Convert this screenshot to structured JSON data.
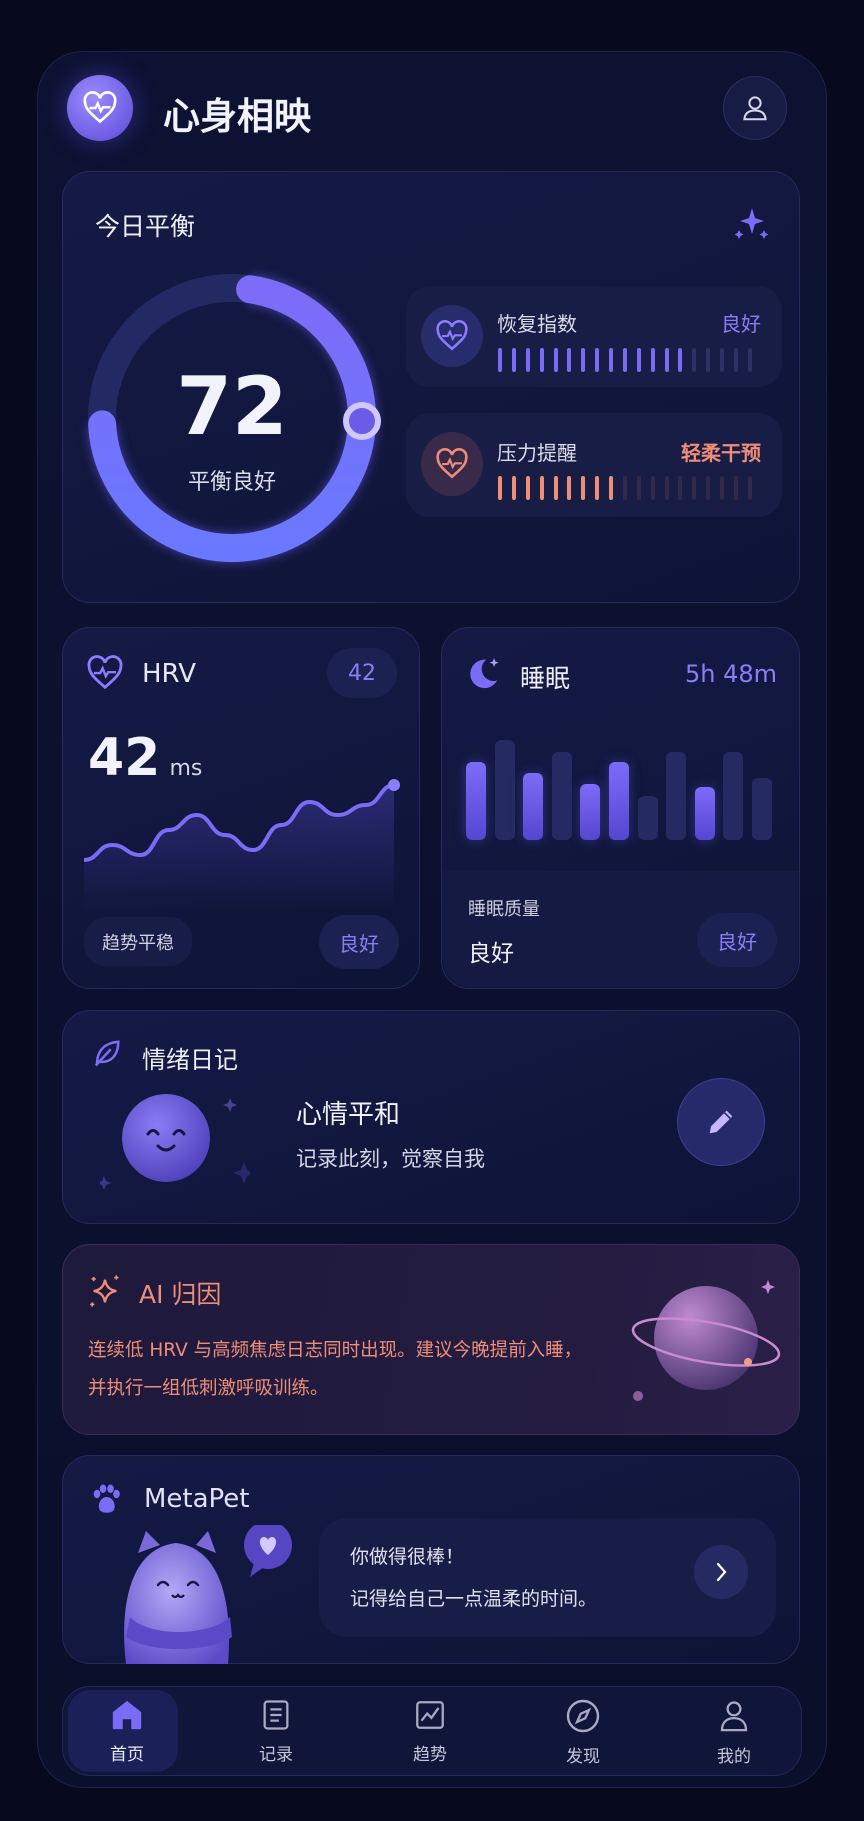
{
  "app": {
    "title": "心身相映",
    "logo_icon": "heart-pulse-icon",
    "profile_icon": "user-icon"
  },
  "balance": {
    "title": "今日平衡",
    "score": 72,
    "score_percent": 72,
    "status": "平衡良好",
    "sparkle_icon": "sparkle-icon",
    "recovery": {
      "label": "恢复指数",
      "value": "良好",
      "level_bars": 19,
      "level_filled": 14,
      "color": "#7b6cf6"
    },
    "stress": {
      "label": "压力提醒",
      "value": "轻柔干预",
      "level_bars": 19,
      "level_filled": 9,
      "color": "#f08d78"
    }
  },
  "hrv": {
    "title": "HRV",
    "badge": "42",
    "value": "42",
    "unit": "ms",
    "trend_label": "趋势平稳",
    "status": "良好",
    "trend": [
      0.2,
      0.35,
      0.25,
      0.5,
      0.65,
      0.45,
      0.3,
      0.55,
      0.78,
      0.65,
      0.75,
      0.95
    ]
  },
  "sleep": {
    "title": "睡眠",
    "duration": "5h 48m",
    "quality_label": "睡眠质量",
    "quality_value": "良好",
    "status": "良好",
    "bars": [
      {
        "level": 0.78,
        "highlight": true
      },
      {
        "level": 1.0,
        "highlight": false
      },
      {
        "level": 0.67,
        "highlight": true
      },
      {
        "level": 0.88,
        "highlight": false
      },
      {
        "level": 0.56,
        "highlight": true
      },
      {
        "level": 0.78,
        "highlight": true
      },
      {
        "level": 0.44,
        "highlight": false
      },
      {
        "level": 0.88,
        "highlight": false
      },
      {
        "level": 0.53,
        "highlight": true
      },
      {
        "level": 0.88,
        "highlight": false
      },
      {
        "level": 0.62,
        "highlight": false
      }
    ]
  },
  "mood": {
    "title": "情绪日记",
    "headline": "心情平和",
    "subtitle": "记录此刻，觉察自我",
    "edit_icon": "pencil-icon"
  },
  "ai": {
    "title": "AI 归因",
    "line1": "连续低 HRV 与高频焦虑日志同时出现。建议今晚提前入睡，",
    "line2": "并执行一组低刺激呼吸训练。"
  },
  "pet": {
    "title": "MetaPet",
    "message1": "你做得很棒！",
    "message2": "记得给自己一点温柔的时间。"
  },
  "nav": {
    "items": [
      {
        "label": "首页",
        "icon": "home-icon",
        "active": true
      },
      {
        "label": "记录",
        "icon": "list-icon"
      },
      {
        "label": "趋势",
        "icon": "chart-icon"
      },
      {
        "label": "发现",
        "icon": "compass-icon"
      },
      {
        "label": "我的",
        "icon": "user-icon"
      }
    ]
  },
  "colors": {
    "accent": "#7b6cf6",
    "coral": "#f08d78",
    "background": "#060a1c"
  }
}
